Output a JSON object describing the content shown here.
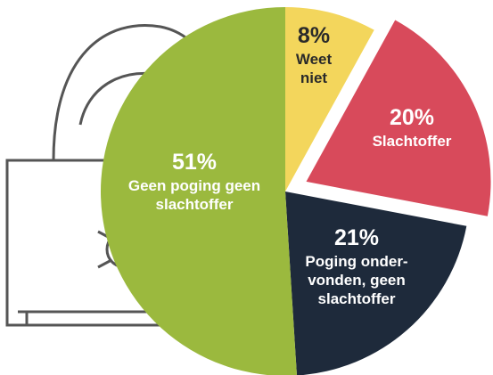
{
  "chart_data": {
    "type": "pie",
    "categories": [
      [
        "Weet",
        "niet"
      ],
      [
        "Slachtoffer"
      ],
      [
        "Poging onder-",
        "vonden, geen",
        "slachtoffer"
      ],
      [
        "Geen poging geen",
        "slachtoffer"
      ]
    ],
    "values": [
      8,
      20,
      21,
      51
    ],
    "value_labels": [
      "8%",
      "20%",
      "21%",
      "51%"
    ],
    "colors": [
      "#f3d65c",
      "#d84a5b",
      "#1e2a3b",
      "#9bb93e"
    ],
    "label_colors": [
      "#2a2a2a",
      "#ffffff",
      "#ffffff",
      "#ffffff"
    ],
    "exploded": [
      false,
      true,
      false,
      false
    ]
  }
}
